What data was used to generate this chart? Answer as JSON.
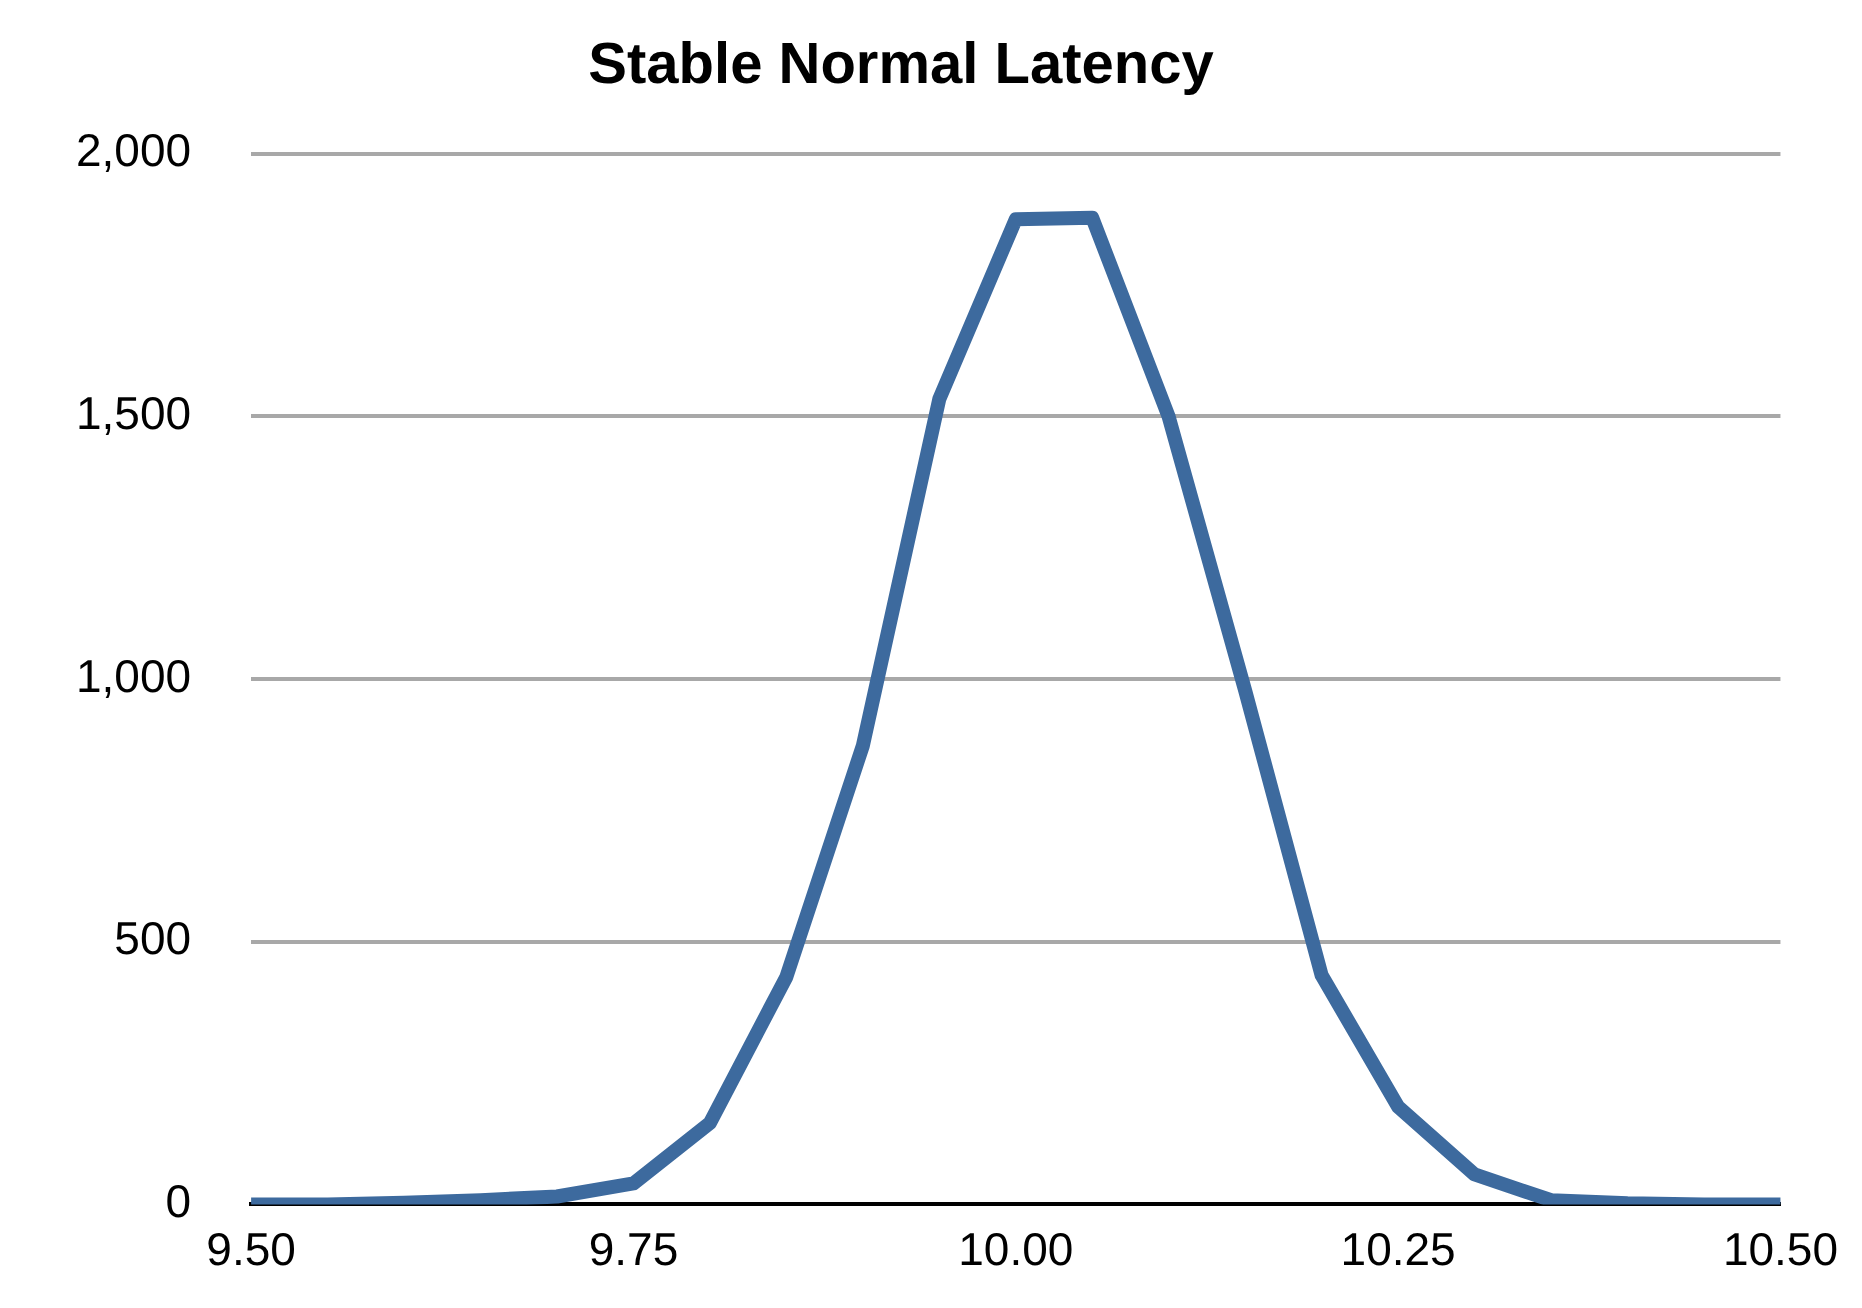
{
  "chart_data": {
    "type": "line",
    "title": "Stable Normal Latency",
    "x": [
      9.5,
      9.55,
      9.6,
      9.65,
      9.7,
      9.75,
      9.8,
      9.85,
      9.9,
      9.95,
      10.0,
      10.05,
      10.1,
      10.15,
      10.2,
      10.25,
      10.3,
      10.35,
      10.4,
      10.45,
      10.5
    ],
    "series": [
      {
        "color": "#3d6a9e",
        "values": [
          0,
          0,
          3,
          8,
          15,
          40,
          155,
          433,
          873,
          1533,
          1875,
          1878,
          1499,
          978,
          436,
          186,
          57,
          8,
          2,
          0,
          0
        ]
      }
    ],
    "xlim": [
      9.5,
      10.5
    ],
    "xticks": [
      {
        "value": 9.5,
        "label": "9.50"
      },
      {
        "value": 9.75,
        "label": "9.75"
      },
      {
        "value": 10.0,
        "label": "10.00"
      },
      {
        "value": 10.25,
        "label": "10.25"
      },
      {
        "value": 10.5,
        "label": "10.50"
      }
    ],
    "ylim": [
      0,
      2000
    ],
    "yticks": [
      0,
      500,
      {
        "value": 1000,
        "label": "1,000"
      },
      {
        "value": 1500,
        "label": "1,500"
      },
      {
        "value": 2000,
        "label": "2,000"
      }
    ],
    "grid": "y",
    "legend": false,
    "marker": "none",
    "line_style": "solid"
  }
}
